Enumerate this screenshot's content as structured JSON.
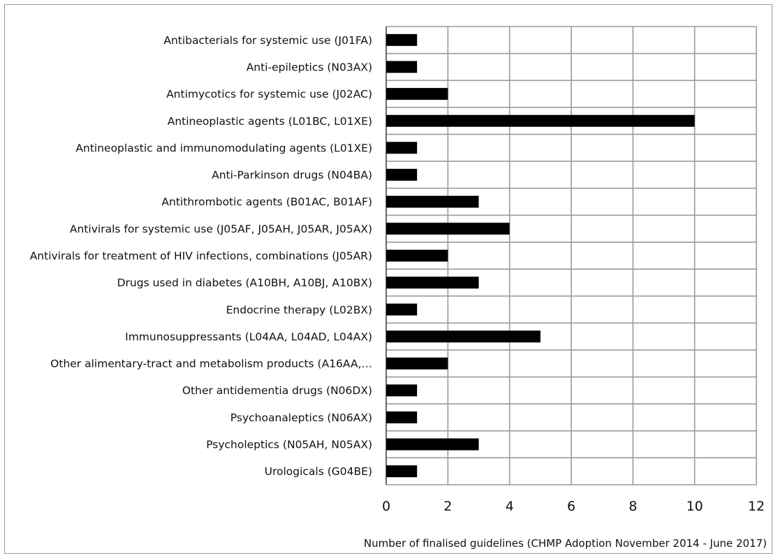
{
  "chart_data": {
    "type": "bar",
    "orientation": "horizontal",
    "categories": [
      "Antibacterials for systemic use (J01FA)",
      "Anti-epileptics (N03AX)",
      "Antimycotics for systemic use (J02AC)",
      "Antineoplastic agents (L01BC, L01XE)",
      "Antineoplastic and immunomodulating agents (L01XE)",
      "Anti-Parkinson drugs (N04BA)",
      "Antithrombotic agents (B01AC, B01AF)",
      "Antivirals for systemic use (J05AF, J05AH, J05AR, J05AX)",
      "Antivirals for treatment of HIV infections, combinations (J05AR)",
      "Drugs used in diabetes (A10BH, A10BJ, A10BX)",
      "Endocrine therapy (L02BX)",
      "Immunosuppressants (L04AA, L04AD, L04AX)",
      "Other alimentary-tract and metabolism products (A16AA,…",
      "Other antidementia drugs (N06DX)",
      "Psychoanaleptics (N06AX)",
      "Psycholeptics (N05AH, N05AX)",
      "Urologicals (G04BE)"
    ],
    "values": [
      1,
      1,
      2,
      10,
      1,
      1,
      3,
      4,
      2,
      3,
      1,
      5,
      2,
      1,
      1,
      3,
      1
    ],
    "xlabel": "Number of finalised guidelines (CHMP Adoption November 2014 - June 2017)",
    "xlim": [
      0,
      12
    ],
    "xticks": [
      "0",
      "2",
      "4",
      "6",
      "8",
      "10",
      "12"
    ],
    "grid": true,
    "bar_color": "#000000",
    "grid_color": "#9a9a9a"
  }
}
